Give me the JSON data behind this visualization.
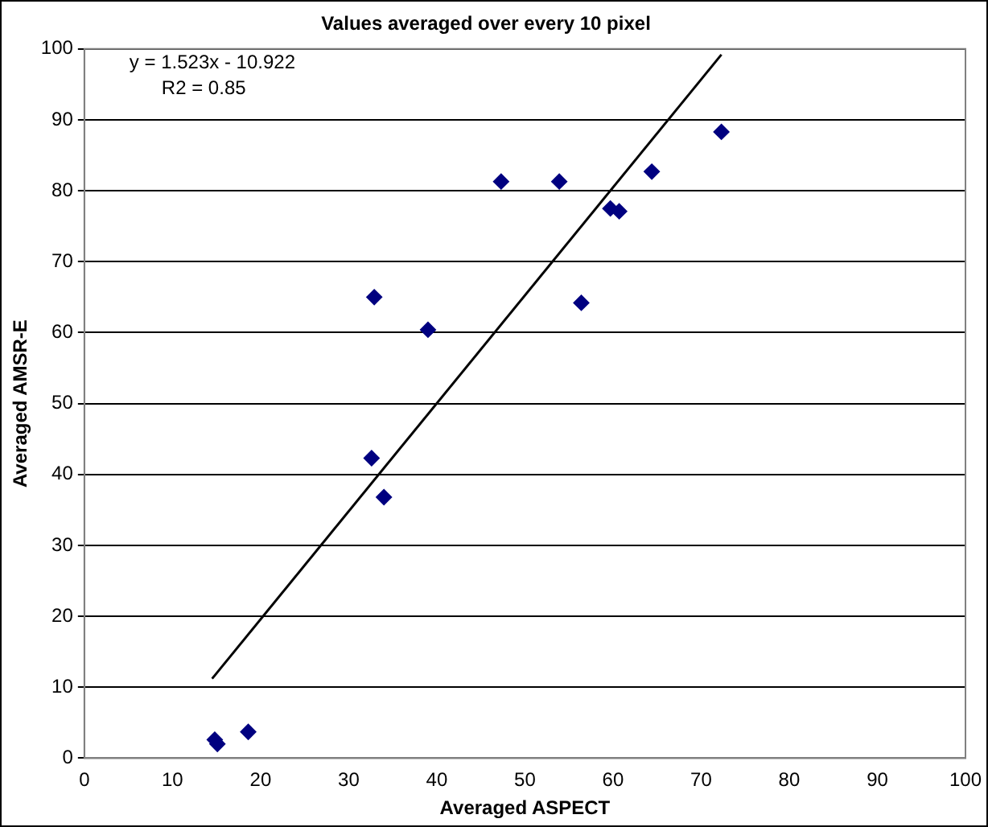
{
  "chart_data": {
    "type": "scatter",
    "title": "Values averaged over every 10 pixel",
    "xlabel": "Averaged ASPECT",
    "ylabel": "Averaged AMSR-E",
    "annotations": [
      "y = 1.523x - 10.922",
      "R2 = 0.85"
    ],
    "xlim": [
      0,
      100
    ],
    "xticks": [
      0,
      10,
      20,
      30,
      40,
      50,
      60,
      70,
      80,
      90,
      100
    ],
    "ylim": [
      0,
      100
    ],
    "yticks": [
      0,
      10,
      20,
      30,
      40,
      50,
      60,
      70,
      80,
      90,
      100
    ],
    "grid": "y",
    "legend": false,
    "marker": "diamond",
    "series": [
      {
        "type": "scatter",
        "color": "#000080",
        "x": [
          14.8,
          15.1,
          18.6,
          32.6,
          34.0,
          32.9,
          39.0,
          47.3,
          53.9,
          56.4,
          59.7,
          60.7,
          64.4,
          72.3
        ],
        "values": [
          2.6,
          2.0,
          3.7,
          42.3,
          36.8,
          65.0,
          60.4,
          81.3,
          81.3,
          64.2,
          77.5,
          77.1,
          82.7,
          88.3
        ]
      },
      {
        "type": "line",
        "color": "#000000",
        "marker": "none",
        "x": [
          14.5,
          72.3
        ],
        "values": [
          11.2,
          99.2
        ]
      }
    ]
  }
}
